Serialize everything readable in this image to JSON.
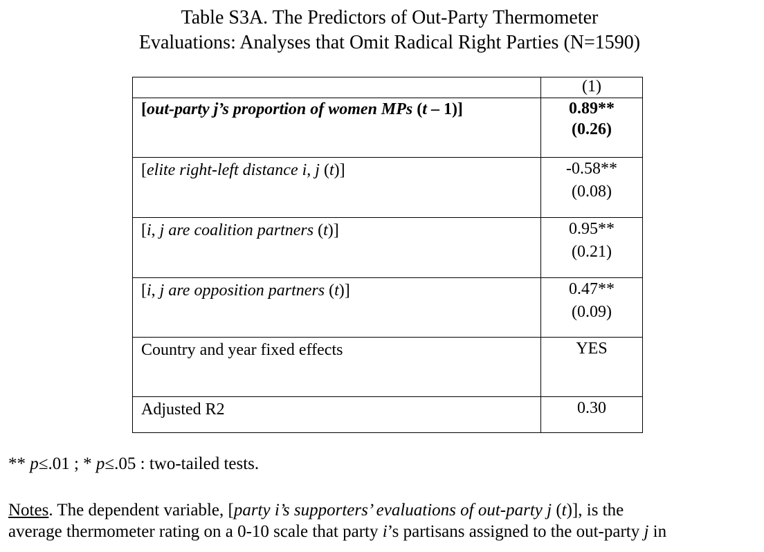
{
  "title": {
    "line1": "Table S3A. The Predictors of Out-Party Thermometer",
    "line2": "Evaluations: Analyses that Omit Radical Right Parties (N=1590)"
  },
  "table": {
    "column_header": "(1)",
    "rows": [
      {
        "label": "[out-party j’s proportion of women MPs (t – 1)]",
        "coef": "0.89**",
        "se": "(0.26)"
      },
      {
        "label": "[elite right-left distance i, j (t)]",
        "coef": "-0.58**",
        "se": "(0.08)"
      },
      {
        "label": "[i, j are coalition partners (t)]",
        "coef": "0.95**",
        "se": "(0.21)"
      },
      {
        "label": "[i, j are opposition partners (t)]",
        "coef": "0.47**",
        "se": "(0.09)"
      },
      {
        "label": "Country and year fixed effects",
        "coef": "YES",
        "se": ""
      },
      {
        "label": "Adjusted R2",
        "coef": "0.30",
        "se": ""
      }
    ]
  },
  "significance_note": "** p≤.01 ; * p≤.05 : two-tailed tests.",
  "notes": {
    "heading": "Notes",
    "line1": "The dependent variable, [party i’s supporters’ evaluations of out-party j (t)], is the",
    "line2": "average thermometer rating on a 0-10 scale that party i’s partisans assigned to the out-party j in"
  }
}
